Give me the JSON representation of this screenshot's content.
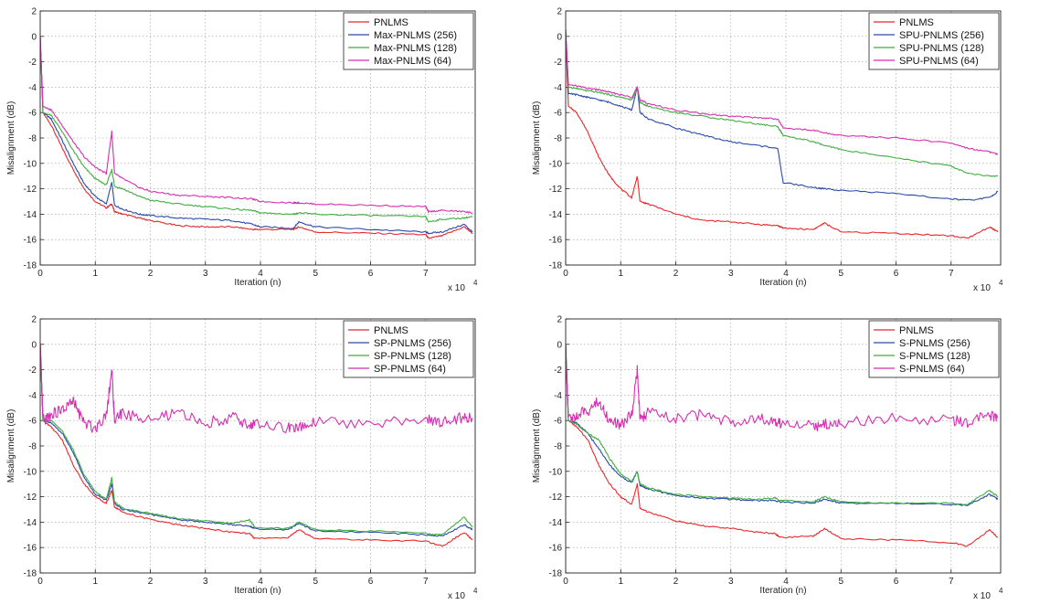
{
  "chart_data": [
    {
      "type": "line",
      "xlabel": "Iteration (n)",
      "ylabel": "Misalignment (dB)",
      "x_multiplier": "x 10",
      "x_exponent": "4",
      "xlim": [
        0,
        7.9
      ],
      "ylim": [
        -18,
        2
      ],
      "xticks": [
        "0",
        "1",
        "2",
        "3",
        "4",
        "5",
        "6",
        "7"
      ],
      "yticks": [
        "2",
        "0",
        "-2",
        "-4",
        "-6",
        "-8",
        "-10",
        "-12",
        "-14",
        "-16",
        "-18"
      ],
      "grid": true,
      "legend_position": "top-right",
      "x": [
        0,
        0.05,
        0.2,
        0.4,
        0.6,
        0.8,
        1.0,
        1.2,
        1.3,
        1.35,
        1.5,
        1.8,
        2.0,
        2.5,
        3.0,
        3.5,
        3.85,
        4.0,
        4.6,
        4.7,
        5.0,
        6.0,
        7.0,
        7.05,
        7.3,
        7.7,
        7.85
      ],
      "series": [
        {
          "name": "PNLMS",
          "color": "#e8282b",
          "values": [
            0,
            -6,
            -7,
            -8.8,
            -10.5,
            -12,
            -13,
            -13.5,
            -13.2,
            -13.8,
            -14,
            -14.3,
            -14.5,
            -14.9,
            -15,
            -15,
            -15.2,
            -15.2,
            -15.2,
            -15,
            -15.4,
            -15.5,
            -15.6,
            -15.9,
            -15.7,
            -15,
            -15.5
          ]
        },
        {
          "name": "Max-PNLMS (256)",
          "color": "#2a4aa8",
          "values": [
            0,
            -6,
            -6.5,
            -8.2,
            -10,
            -11.6,
            -12.6,
            -13.2,
            -11.5,
            -13.3,
            -13.6,
            -14,
            -14.1,
            -14.3,
            -14.4,
            -14.5,
            -14.8,
            -15,
            -15.1,
            -14.6,
            -15,
            -15.2,
            -15.4,
            -15.5,
            -15.4,
            -14.8,
            -15.4
          ]
        },
        {
          "name": "Max-PNLMS (128)",
          "color": "#3fae3f",
          "values": [
            0,
            -6,
            -6.2,
            -7.5,
            -9,
            -10.3,
            -11.2,
            -11.7,
            -10.5,
            -11.8,
            -12,
            -12.6,
            -12.9,
            -13.2,
            -13.4,
            -13.6,
            -13.7,
            -13.9,
            -14,
            -13.9,
            -14,
            -14.1,
            -14.2,
            -14.6,
            -14.4,
            -14.3,
            -14.2
          ]
        },
        {
          "name": "Max-PNLMS (64)",
          "color": "#d62fb0",
          "values": [
            0,
            -5.5,
            -5.8,
            -7,
            -8.3,
            -9.5,
            -10.3,
            -10.8,
            -7.5,
            -10.8,
            -11.2,
            -11.9,
            -12.2,
            -12.5,
            -12.6,
            -12.7,
            -12.8,
            -13,
            -13.1,
            -13.1,
            -13.2,
            -13.3,
            -13.4,
            -13.8,
            -13.7,
            -13.8,
            -13.9
          ]
        }
      ]
    },
    {
      "type": "line",
      "xlabel": "Iteration (n)",
      "ylabel": "Misalignment (dB)",
      "x_multiplier": "x 10",
      "x_exponent": "4",
      "xlim": [
        0,
        7.9
      ],
      "ylim": [
        -18,
        2
      ],
      "xticks": [
        "0",
        "1",
        "2",
        "3",
        "4",
        "5",
        "6",
        "7"
      ],
      "yticks": [
        "2",
        "0",
        "-2",
        "-4",
        "-6",
        "-8",
        "-10",
        "-12",
        "-14",
        "-16",
        "-18"
      ],
      "grid": true,
      "legend_position": "top-right",
      "x": [
        0,
        0.05,
        0.2,
        0.4,
        0.6,
        0.8,
        1.0,
        1.2,
        1.3,
        1.35,
        1.5,
        2.0,
        2.5,
        3.0,
        3.5,
        3.85,
        3.95,
        4.5,
        4.7,
        5.0,
        6.0,
        7.0,
        7.3,
        7.7,
        7.85
      ],
      "series": [
        {
          "name": "PNLMS",
          "color": "#e8282b",
          "values": [
            0,
            -5.5,
            -6,
            -7.5,
            -9.5,
            -11,
            -12,
            -12.7,
            -11,
            -13,
            -13.2,
            -14,
            -14.5,
            -14.6,
            -14.8,
            -14.9,
            -15.1,
            -15.2,
            -14.7,
            -15.4,
            -15.5,
            -15.7,
            -15.9,
            -15,
            -15.4
          ]
        },
        {
          "name": "SPU-PNLMS (256)",
          "color": "#2a4aa8",
          "values": [
            0.5,
            -4.5,
            -4.6,
            -4.8,
            -5,
            -5.2,
            -5.5,
            -5.8,
            -4,
            -6,
            -6.5,
            -7.2,
            -7.8,
            -8.3,
            -8.6,
            -8.8,
            -11.5,
            -11.9,
            -12,
            -12.1,
            -12.4,
            -12.8,
            -12.9,
            -12.7,
            -12.2
          ]
        },
        {
          "name": "SPU-PNLMS (128)",
          "color": "#3fae3f",
          "values": [
            0.3,
            -4,
            -4.1,
            -4.3,
            -4.4,
            -4.6,
            -4.8,
            -5,
            -4.2,
            -5.2,
            -5.5,
            -6,
            -6.3,
            -6.6,
            -6.9,
            -7.1,
            -7.8,
            -8.3,
            -8.6,
            -8.9,
            -9.6,
            -10.2,
            -10.8,
            -11,
            -11
          ]
        },
        {
          "name": "SPU-PNLMS (64)",
          "color": "#d62fb0",
          "values": [
            0.6,
            -3.8,
            -3.9,
            -4.1,
            -4.2,
            -4.4,
            -4.6,
            -4.8,
            -4,
            -5,
            -5.3,
            -5.8,
            -6.1,
            -6.3,
            -6.4,
            -6.5,
            -7.2,
            -7.4,
            -7.6,
            -7.8,
            -8,
            -8.4,
            -8.8,
            -9.1,
            -9.3
          ]
        }
      ]
    },
    {
      "type": "line",
      "xlabel": "Iteration (n)",
      "ylabel": "Misalignment (dB)",
      "x_multiplier": "x 10",
      "x_exponent": "4",
      "xlim": [
        0,
        7.9
      ],
      "ylim": [
        -18,
        2
      ],
      "xticks": [
        "0",
        "1",
        "2",
        "3",
        "4",
        "5",
        "6",
        "7"
      ],
      "yticks": [
        "2",
        "0",
        "-2",
        "-4",
        "-6",
        "-8",
        "-10",
        "-12",
        "-14",
        "-16",
        "-18"
      ],
      "grid": true,
      "legend_position": "top-right",
      "x": [
        0,
        0.05,
        0.2,
        0.4,
        0.6,
        0.8,
        1.0,
        1.2,
        1.3,
        1.35,
        1.5,
        2.0,
        2.5,
        3.0,
        3.5,
        3.8,
        3.9,
        4.5,
        4.7,
        5.0,
        6.0,
        7.0,
        7.3,
        7.7,
        7.85
      ],
      "series": [
        {
          "name": "PNLMS",
          "color": "#e8282b",
          "values": [
            0,
            -6,
            -6.5,
            -7.5,
            -9.5,
            -11,
            -12,
            -12.5,
            -11.5,
            -12.8,
            -13.2,
            -13.8,
            -14.2,
            -14.5,
            -14.8,
            -14.9,
            -15.3,
            -15.2,
            -14.6,
            -15.3,
            -15.4,
            -15.5,
            -15.9,
            -14.8,
            -15.4
          ]
        },
        {
          "name": "SP-PNLMS (256)",
          "color": "#2a4aa8",
          "values": [
            0,
            -6,
            -6.2,
            -7,
            -8.5,
            -10.5,
            -11.8,
            -12.3,
            -11,
            -12.5,
            -13,
            -13.4,
            -13.8,
            -14,
            -14.2,
            -14.3,
            -14.5,
            -14.6,
            -14.1,
            -14.7,
            -14.8,
            -15,
            -15.1,
            -14.2,
            -14.6
          ]
        },
        {
          "name": "SP-PNLMS (128)",
          "color": "#3fae3f",
          "values": [
            0,
            -6,
            -6,
            -6.8,
            -8.3,
            -10.3,
            -11.6,
            -12.2,
            -10.5,
            -12.4,
            -12.9,
            -13.3,
            -13.7,
            -13.9,
            -14.1,
            -13.8,
            -14.4,
            -14.5,
            -14,
            -14.6,
            -14.7,
            -14.9,
            -15,
            -13.6,
            -14.4
          ]
        },
        {
          "name": "SP-PNLMS (64)",
          "color": "#d62fb0",
          "values": [
            0,
            -6,
            -5.5,
            -5.2,
            -4.5,
            -6.2,
            -6.6,
            -5.5,
            -2,
            -6,
            -5.4,
            -6,
            -5.4,
            -6.2,
            -5.7,
            -6.4,
            -6.3,
            -6.6,
            -6.6,
            -6.1,
            -6.2,
            -5.9,
            -6.1,
            -5.7,
            -5.8
          ]
        }
      ]
    },
    {
      "type": "line",
      "xlabel": "Iteration (n)",
      "ylabel": "Misalignment (dB)",
      "x_multiplier": "x 10",
      "x_exponent": "4",
      "xlim": [
        0,
        7.9
      ],
      "ylim": [
        -18,
        2
      ],
      "xticks": [
        "0",
        "1",
        "2",
        "3",
        "4",
        "5",
        "6",
        "7"
      ],
      "yticks": [
        "2",
        "0",
        "-2",
        "-4",
        "-6",
        "-8",
        "-10",
        "-12",
        "-14",
        "-16",
        "-18"
      ],
      "grid": true,
      "legend_position": "top-right",
      "x": [
        0,
        0.05,
        0.2,
        0.4,
        0.6,
        0.8,
        1.0,
        1.2,
        1.3,
        1.35,
        1.5,
        2.0,
        2.5,
        3.0,
        3.5,
        3.8,
        3.9,
        4.5,
        4.7,
        5.0,
        6.0,
        7.0,
        7.3,
        7.7,
        7.85
      ],
      "series": [
        {
          "name": "PNLMS",
          "color": "#e8282b",
          "values": [
            0,
            -6,
            -6.5,
            -7.5,
            -9.5,
            -11,
            -12,
            -12.6,
            -11,
            -12.9,
            -13.2,
            -13.9,
            -14.3,
            -14.5,
            -14.8,
            -14.9,
            -15.2,
            -15.1,
            -14.5,
            -15.3,
            -15.4,
            -15.6,
            -15.9,
            -14.6,
            -15.2
          ]
        },
        {
          "name": "S-PNLMS (256)",
          "color": "#2a4aa8",
          "values": [
            0,
            -6,
            -6.2,
            -7,
            -8.2,
            -9.5,
            -10.4,
            -10.9,
            -10,
            -11.1,
            -11.4,
            -11.9,
            -12.1,
            -12.2,
            -12.3,
            -12.3,
            -12.4,
            -12.5,
            -12.2,
            -12.5,
            -12.5,
            -12.6,
            -12.7,
            -11.8,
            -12.2
          ]
        },
        {
          "name": "S-PNLMS (128)",
          "color": "#3fae3f",
          "values": [
            0,
            -6,
            -6.3,
            -7,
            -7.5,
            -9,
            -10.2,
            -10.8,
            -10,
            -11,
            -11.3,
            -11.8,
            -12,
            -12.1,
            -12.2,
            -12.1,
            -12.3,
            -12.4,
            -12,
            -12.4,
            -12.5,
            -12.5,
            -12.6,
            -11.5,
            -12
          ]
        },
        {
          "name": "S-PNLMS (64)",
          "color": "#d62fb0",
          "values": [
            0,
            -6,
            -5.6,
            -5.2,
            -4.5,
            -6,
            -6.4,
            -5.5,
            -2,
            -6,
            -5.3,
            -5.9,
            -5.5,
            -6.1,
            -5.7,
            -6.3,
            -6.2,
            -6.4,
            -6.3,
            -6.2,
            -5.8,
            -6,
            -6.1,
            -5.5,
            -5.8
          ]
        }
      ]
    }
  ]
}
